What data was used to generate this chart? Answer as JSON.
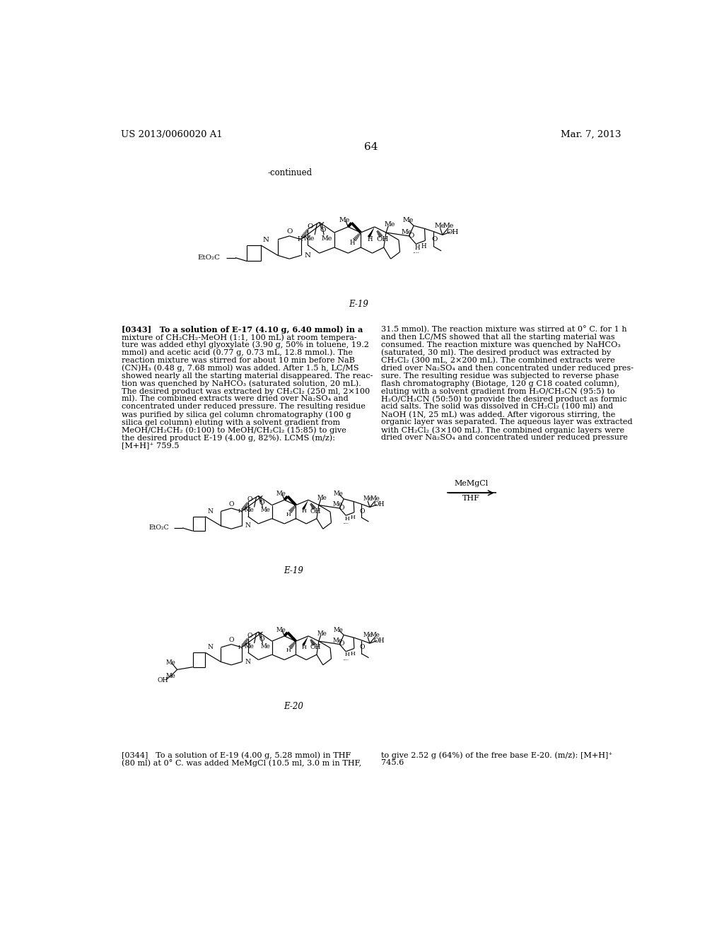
{
  "background_color": "#ffffff",
  "header_left": "US 2013/0060020 A1",
  "header_right": "Mar. 7, 2013",
  "page_number": "64",
  "continued_label": "-continued",
  "label_E19": "E-19",
  "label_E20": "E-20",
  "rxn_top": "MeMgCl",
  "rxn_bot": "THF",
  "para343_col1_lines": [
    "[0343]   To a solution of E-17 (4.10 g, 6.40 mmol) in a",
    "mixture of CH₂CH₂-MeOH (1:1, 100 mL) at room tempera-",
    "ture was added ethyl glyoxylate (3.90 g, 50% in toluene, 19.2",
    "mmol) and acetic acid (0.77 g, 0.73 mL, 12.8 mmol.). The",
    "reaction mixture was stirred for about 10 min before NaB",
    "(CN)H₃ (0.48 g, 7.68 mmol) was added. After 1.5 h, LC/MS",
    "showed nearly all the starting material disappeared. The reac-",
    "tion was quenched by NaHCO₃ (saturated solution, 20 mL).",
    "The desired product was extracted by CH₂Cl₂ (250 ml, 2×100",
    "ml). The combined extracts were dried over Na₂SO₄ and",
    "concentrated under reduced pressure. The resulting residue",
    "was purified by silica gel column chromatography (100 g",
    "silica gel column) eluting with a solvent gradient from",
    "MeOH/CH₂CH₂ (0:100) to MeOH/CH₂Cl₂ (15:85) to give",
    "the desired product E-19 (4.00 g, 82%). LCMS (m/z):",
    "[M+H]⁺ 759.5"
  ],
  "para343_col2_lines": [
    "31.5 mmol). The reaction mixture was stirred at 0° C. for 1 h",
    "and then LC/MS showed that all the starting material was",
    "consumed. The reaction mixture was quenched by NaHCO₃",
    "(saturated, 30 ml). The desired product was extracted by",
    "CH₂Cl₂ (300 mL, 2×200 mL). The combined extracts were",
    "dried over Na₂SO₄ and then concentrated under reduced pres-",
    "sure. The resulting residue was subjected to reverse phase",
    "flash chromatography (Biotage, 120 g C18 coated column),",
    "eluting with a solvent gradient from H₂O/CH₃CN (95:5) to",
    "H₂O/CH₃CN (50:50) to provide the desired product as formic",
    "acid salts. The solid was dissolved in CH₂Cl₂ (100 ml) and",
    "NaOH (1N, 25 mL) was added. After vigorous stirring, the",
    "organic layer was separated. The aqueous layer was extracted",
    "with CH₂Cl₂ (3×100 mL). The combined organic layers were",
    "dried over Na₂SO₄ and concentrated under reduced pressure"
  ],
  "para344_col1_lines": [
    "[0344]   To a solution of E-19 (4.00 g, 5.28 mmol) in THF",
    "(80 ml) at 0° C. was added MeMgCl (10.5 ml, 3.0 m in THF,"
  ],
  "para344_col2_lines": [
    "to give 2.52 g (64%) of the free base E-20. (m/z): [M+H]⁺",
    "745.6"
  ]
}
